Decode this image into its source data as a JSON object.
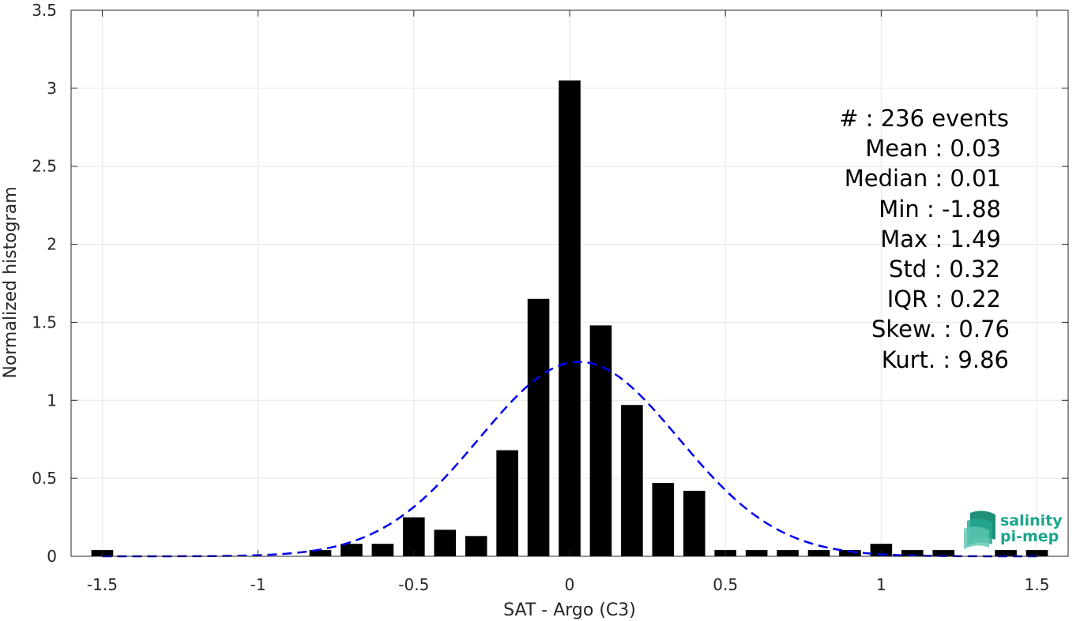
{
  "chart_data": {
    "type": "bar",
    "xlabel": "SAT - Argo (C3)",
    "ylabel": "Normalized histogram",
    "xlim": [
      -1.6,
      1.6
    ],
    "ylim": [
      0,
      3.5
    ],
    "xticks": [
      -1.5,
      -1,
      -0.5,
      0,
      0.5,
      1,
      1.5
    ],
    "xtick_labels": [
      "-1.5",
      "-1",
      "-0.5",
      "0",
      "0.5",
      "1",
      "1.5"
    ],
    "yticks": [
      0,
      0.5,
      1,
      1.5,
      2,
      2.5,
      3,
      3.5
    ],
    "ytick_labels": [
      "0",
      "0.5",
      "1",
      "1.5",
      "2",
      "2.5",
      "3",
      "3.5"
    ],
    "grid": true,
    "bar_width": 0.07,
    "bar_color": "#000000",
    "bars": [
      {
        "x": -1.5,
        "y": 0.04
      },
      {
        "x": -0.8,
        "y": 0.04
      },
      {
        "x": -0.7,
        "y": 0.08
      },
      {
        "x": -0.6,
        "y": 0.08
      },
      {
        "x": -0.5,
        "y": 0.25
      },
      {
        "x": -0.4,
        "y": 0.17
      },
      {
        "x": -0.3,
        "y": 0.13
      },
      {
        "x": -0.2,
        "y": 0.68
      },
      {
        "x": -0.1,
        "y": 1.65
      },
      {
        "x": 0.0,
        "y": 3.05
      },
      {
        "x": 0.1,
        "y": 1.48
      },
      {
        "x": 0.2,
        "y": 0.97
      },
      {
        "x": 0.3,
        "y": 0.47
      },
      {
        "x": 0.4,
        "y": 0.42
      },
      {
        "x": 0.5,
        "y": 0.04
      },
      {
        "x": 0.6,
        "y": 0.04
      },
      {
        "x": 0.7,
        "y": 0.04
      },
      {
        "x": 0.8,
        "y": 0.04
      },
      {
        "x": 0.9,
        "y": 0.04
      },
      {
        "x": 1.0,
        "y": 0.08
      },
      {
        "x": 1.1,
        "y": 0.04
      },
      {
        "x": 1.2,
        "y": 0.04
      },
      {
        "x": 1.4,
        "y": 0.04
      },
      {
        "x": 1.5,
        "y": 0.04
      }
    ],
    "fit_curve": {
      "style": "dashed",
      "color": "#0000ee",
      "mean": 0.03,
      "std": 0.32,
      "x_range": [
        -1.5,
        1.5
      ]
    }
  },
  "stats": {
    "count": "#  : 236 events",
    "mean": "Mean : 0.03",
    "median": "Median : 0.01",
    "min": "Min : -1.88",
    "max": "Max : 1.49",
    "std": "Std : 0.32",
    "iqr": "IQR : 0.22",
    "skew": "Skew. : 0.76",
    "kurt": "Kurt. : 9.86"
  },
  "logo": {
    "line1": "salinity",
    "line2": "pi-mep",
    "color": "#1aa58c"
  }
}
